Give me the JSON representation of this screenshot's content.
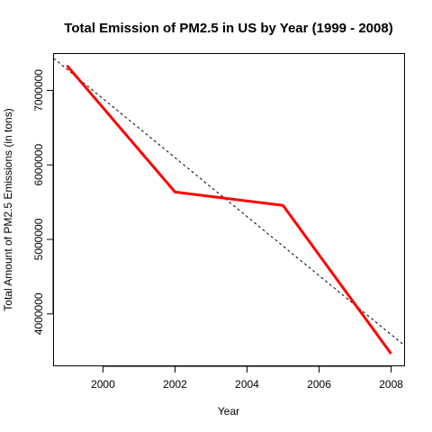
{
  "chart_data": {
    "type": "line",
    "title": "Total Emission of PM2.5 in US by Year (1999 - 2008)",
    "xlabel": "Year",
    "ylabel": "Total Amount of PM2.5 Emissions (in tons)",
    "x": [
      1999,
      2002,
      2005,
      2008
    ],
    "series": [
      {
        "values": [
          7332967,
          5635780,
          5454703,
          3464206
        ],
        "color": "#ff0000",
        "line_style": "solid"
      }
    ],
    "trend_line": {
      "style": "dashed",
      "color": "#000000",
      "x": [
        1998.63,
        2008.37
      ],
      "values": [
        7431000,
        3576000
      ]
    },
    "xlim": [
      1998.64,
      2008.36
    ],
    "ylim": [
      3309000,
      7488000
    ],
    "x_ticks": [
      2000,
      2002,
      2004,
      2006,
      2008
    ],
    "x_tick_labels": [
      "2000",
      "2002",
      "2004",
      "2006",
      "2008"
    ],
    "y_ticks": [
      4000000,
      5000000,
      6000000,
      7000000
    ],
    "y_tick_labels": [
      "4000000",
      "5000000",
      "6000000",
      "7000000"
    ],
    "grid": false,
    "legend": "none"
  }
}
